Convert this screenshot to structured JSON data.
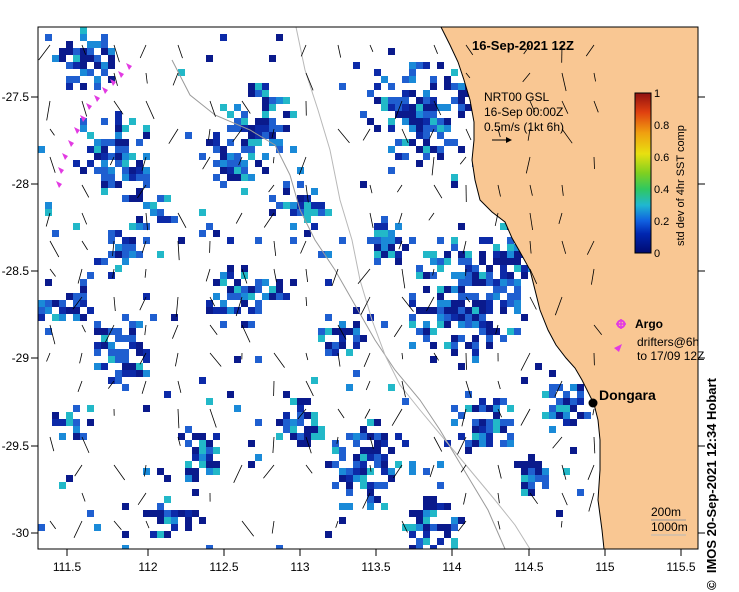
{
  "map": {
    "title": "16-Sep-2021 12Z",
    "lon_ticks": [
      "111.5",
      "112",
      "112.5",
      "113",
      "113.5",
      "114",
      "114.5",
      "115",
      "115.5"
    ],
    "lat_ticks": [
      "-27.5",
      "-28",
      "-28.5",
      "-29",
      "-29.5",
      "-30"
    ],
    "lon_range": [
      111.28,
      115.6
    ],
    "lat_range": [
      -30.1,
      -27.1
    ],
    "colors": {
      "land": "#f9c793",
      "sea": "#ffffff",
      "sst_low": "#0a1a8c",
      "sst_mid": "#1f5fd0",
      "sst_high": "#22b8c8",
      "argo": "#e23ae2",
      "drifter": "#e23ae2"
    }
  },
  "current_legend": {
    "line1": "NRT00 GSL",
    "line2": "16-Sep 00:00Z",
    "line3": "0.5m/s (1kt 6h)"
  },
  "colorbar": {
    "label": "std dev of 4hr SST comp",
    "ticks": [
      "1",
      "0.8",
      "0.6",
      "0.4",
      "0.2",
      "0"
    ],
    "min": 0,
    "max": 1
  },
  "legend": {
    "argo_label": "Argo",
    "drifter_line1": "drifters@6h",
    "drifter_line2": "to 17/09 12Z"
  },
  "place": {
    "name": "Dongara"
  },
  "bathymetry": {
    "line1": "200m",
    "line2": "1000m"
  },
  "credit": {
    "symbol": "©",
    "text": "IMOS 20-Sep-2021 12:34 Hobart"
  }
}
